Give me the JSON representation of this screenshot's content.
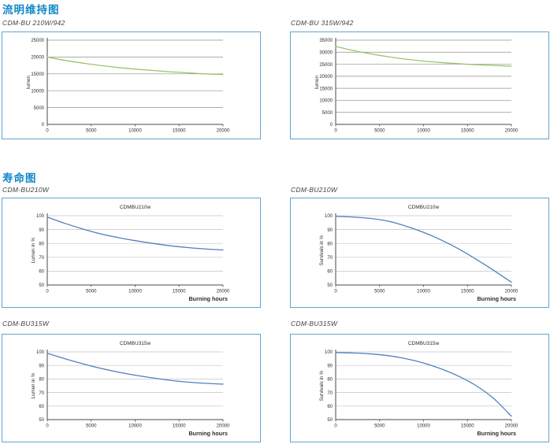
{
  "page": {
    "sections": [
      {
        "heading": "流明维持图"
      },
      {
        "heading": "寿命图"
      }
    ]
  },
  "colors": {
    "heading_blue": "#1289c9",
    "box_border": "#5fa5cb",
    "axis": "#4a4a4a",
    "tick_text": "#2b2b2b",
    "green_line": "#9cc36d",
    "blue_line": "#4f81bd",
    "grid_dark": "#8f8f8f",
    "grid_light": "#c4c4c4"
  },
  "chart_data": [
    {
      "id": "lumen-maintenance-210w",
      "label_above": "CDM-BU 210W/942",
      "type": "line",
      "title": "",
      "xlabel": "",
      "ylabel": "lumen",
      "xlim": [
        0,
        20000
      ],
      "ylim": [
        0,
        25000
      ],
      "xticks": [
        0,
        5000,
        10000,
        15000,
        20000
      ],
      "yticks": [
        0,
        5000,
        10000,
        15000,
        20000,
        25000
      ],
      "grid": true,
      "grid_color": "#8f8f8f",
      "line_color": "#9cc36d",
      "x": [
        0,
        2000,
        4000,
        6000,
        8000,
        10000,
        12000,
        14000,
        16000,
        18000,
        20000
      ],
      "y": [
        20000,
        19000,
        18200,
        17500,
        16900,
        16400,
        16000,
        15600,
        15300,
        15000,
        14800
      ]
    },
    {
      "id": "lumen-maintenance-315w",
      "label_above": "CDM-BU 315W/942",
      "type": "line",
      "title": "",
      "xlabel": "",
      "ylabel": "lumen",
      "xlim": [
        0,
        20000
      ],
      "ylim": [
        0,
        35000
      ],
      "xticks": [
        0,
        5000,
        10000,
        15000,
        20000
      ],
      "yticks": [
        0,
        5000,
        10000,
        15000,
        20000,
        25000,
        30000,
        35000
      ],
      "grid": true,
      "grid_color": "#8f8f8f",
      "line_color": "#9cc36d",
      "x": [
        0,
        2000,
        4000,
        6000,
        8000,
        10000,
        12000,
        14000,
        16000,
        18000,
        20000
      ],
      "y": [
        32400,
        30700,
        29300,
        28100,
        27100,
        26300,
        25700,
        25200,
        24800,
        24500,
        24200
      ]
    },
    {
      "id": "life-lumen-210w",
      "label_above": "CDM-BU210W",
      "type": "line",
      "title": "CDMBU210w",
      "xlabel": "Burning hours",
      "ylabel": "Lumen in %",
      "xlim": [
        0,
        20000
      ],
      "ylim": [
        50,
        100
      ],
      "xticks": [
        0,
        5000,
        10000,
        15000,
        20000
      ],
      "yticks": [
        50,
        60,
        70,
        80,
        90,
        100
      ],
      "grid": true,
      "grid_color": "#c4c4c4",
      "line_color": "#4f81bd",
      "x": [
        0,
        2000,
        4000,
        6000,
        8000,
        10000,
        12000,
        14000,
        16000,
        18000,
        20000
      ],
      "y": [
        99,
        94.5,
        90.5,
        87,
        84.3,
        82,
        80,
        78.3,
        77,
        76,
        75.3
      ]
    },
    {
      "id": "life-survival-210w",
      "label_above": "CDM-BU210W",
      "type": "line",
      "title": "CDMBU210w",
      "xlabel": "Burning hours",
      "ylabel": "Survivals in %",
      "xlim": [
        0,
        20000
      ],
      "ylim": [
        50,
        100
      ],
      "xticks": [
        0,
        5000,
        10000,
        15000,
        20000
      ],
      "yticks": [
        50,
        60,
        70,
        80,
        90,
        100
      ],
      "grid": true,
      "grid_color": "#c4c4c4",
      "line_color": "#4f81bd",
      "x": [
        0,
        2000,
        4000,
        6000,
        8000,
        10000,
        12000,
        14000,
        16000,
        18000,
        20000
      ],
      "y": [
        99.5,
        99,
        98,
        96,
        92.5,
        88,
        82.5,
        76,
        68.5,
        60.5,
        52
      ]
    },
    {
      "id": "life-lumen-315w",
      "label_above": "CDM-BU315W",
      "type": "line",
      "title": "CDMBU315w",
      "xlabel": "Burning hours",
      "ylabel": "Lumen in %",
      "xlim": [
        0,
        20000
      ],
      "ylim": [
        50,
        100
      ],
      "xticks": [
        0,
        5000,
        10000,
        15000,
        20000
      ],
      "yticks": [
        50,
        60,
        70,
        80,
        90,
        100
      ],
      "grid": true,
      "grid_color": "#c4c4c4",
      "line_color": "#4f81bd",
      "x": [
        0,
        2000,
        4000,
        6000,
        8000,
        10000,
        12000,
        14000,
        16000,
        18000,
        20000
      ],
      "y": [
        99,
        95,
        91.3,
        88,
        85.2,
        82.8,
        80.8,
        79,
        77.7,
        76.8,
        76.2
      ]
    },
    {
      "id": "life-survival-315w",
      "label_above": "CDM-BU315W",
      "type": "line",
      "title": "CDMBU315w",
      "xlabel": "Burning hours",
      "ylabel": "Survivals in %",
      "xlim": [
        0,
        20000
      ],
      "ylim": [
        50,
        100
      ],
      "xticks": [
        0,
        5000,
        10000,
        15000,
        20000
      ],
      "yticks": [
        50,
        60,
        70,
        80,
        90,
        100
      ],
      "grid": true,
      "grid_color": "#c4c4c4",
      "line_color": "#4f81bd",
      "x": [
        0,
        2000,
        4000,
        6000,
        8000,
        10000,
        12000,
        14000,
        16000,
        18000,
        20000
      ],
      "y": [
        99.5,
        99.2,
        98.5,
        97.2,
        95,
        91.8,
        87.5,
        82,
        75,
        65.5,
        52.5
      ]
    }
  ]
}
